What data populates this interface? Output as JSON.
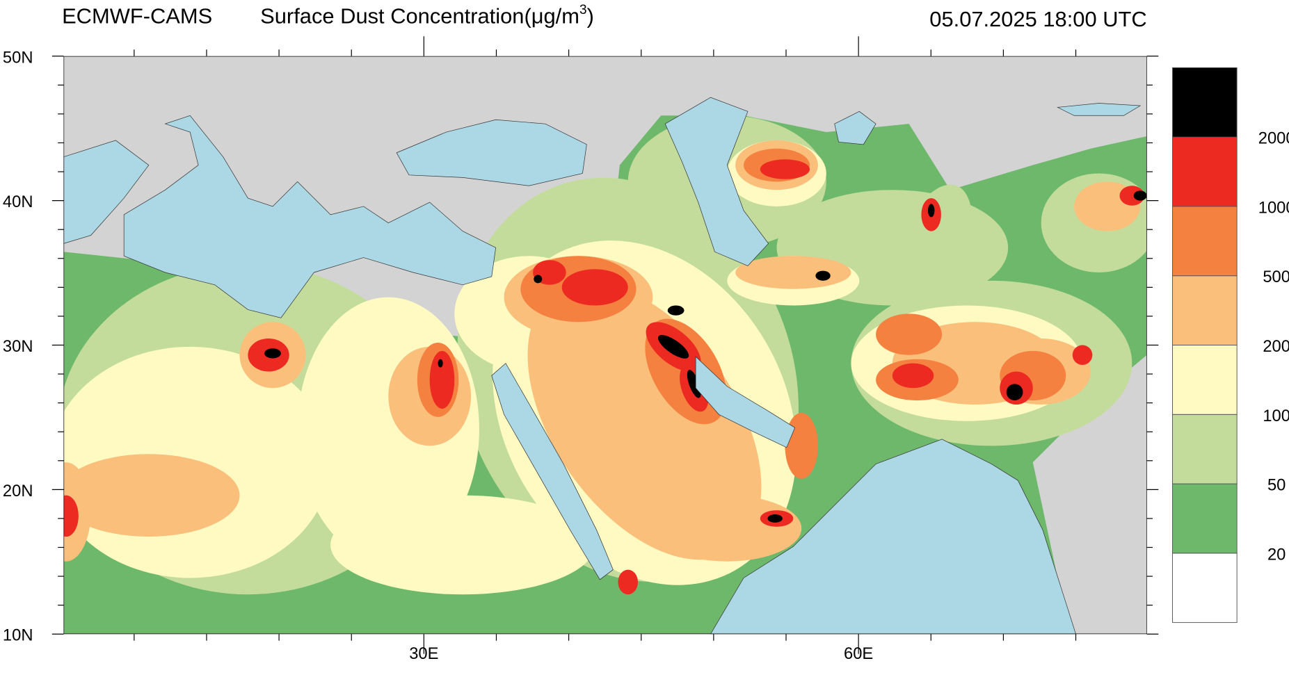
{
  "header": {
    "source": "ECMWF-CAMS",
    "title": "Surface Dust Concentration(μg/m",
    "title_sup": "3",
    "title_end": ")",
    "timestamp": "05.07.2025 18:00 UTC"
  },
  "map": {
    "lat_labels": [
      "50N",
      "40N",
      "30N",
      "20N",
      "10N"
    ],
    "lon_labels": [
      "30E",
      "60E"
    ]
  },
  "legend": {
    "levels": [
      20,
      50,
      100,
      200,
      500,
      1000,
      2000
    ],
    "colors": [
      "#ffffff",
      "#6db86a",
      "#c3dc9b",
      "#fefac2",
      "#fbbf7c",
      "#f4813f",
      "#ec2a22",
      "#000000"
    ]
  }
}
